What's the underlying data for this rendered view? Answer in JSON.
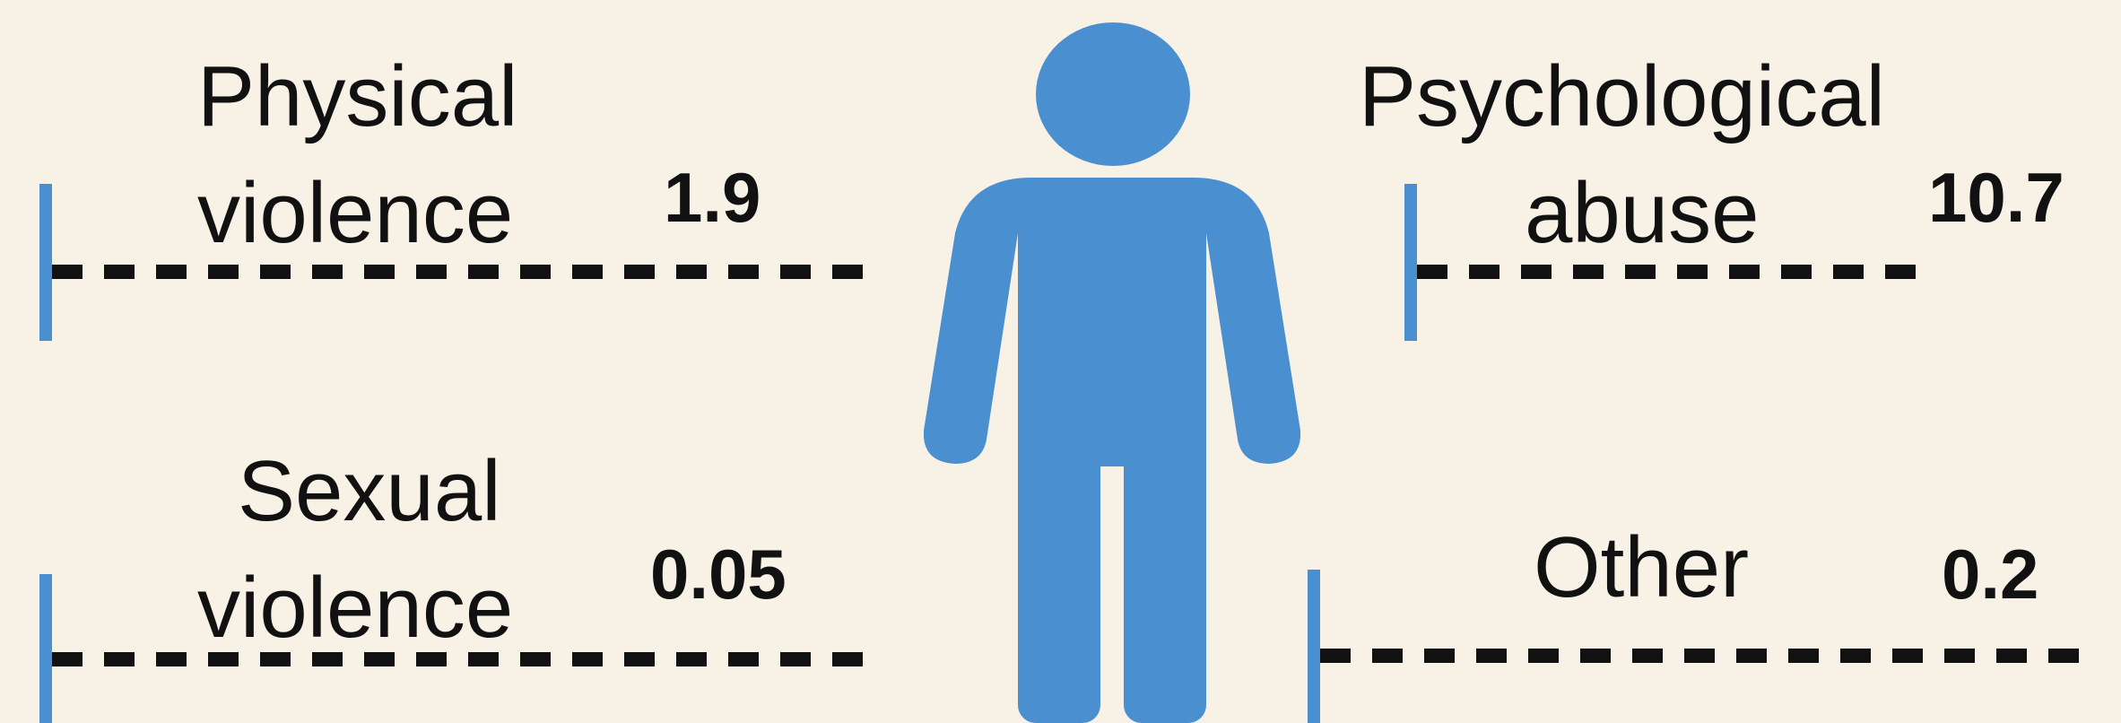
{
  "panels": {
    "physical": {
      "label_line1": "Physical",
      "label_line2": "violence",
      "value": "1.9"
    },
    "psychological": {
      "label_line1": "Psychological",
      "label_line2": "abuse",
      "value": "10.7"
    },
    "sexual": {
      "label_line1": "Sexual",
      "label_line2": "violence",
      "value": "0.05"
    },
    "other": {
      "label_line1": "Other",
      "value": "0.2"
    }
  },
  "colors": {
    "accent": "#4a90d0",
    "background": "#f8f1e5",
    "text": "#111111"
  },
  "icons": {
    "figure": "person-icon"
  }
}
